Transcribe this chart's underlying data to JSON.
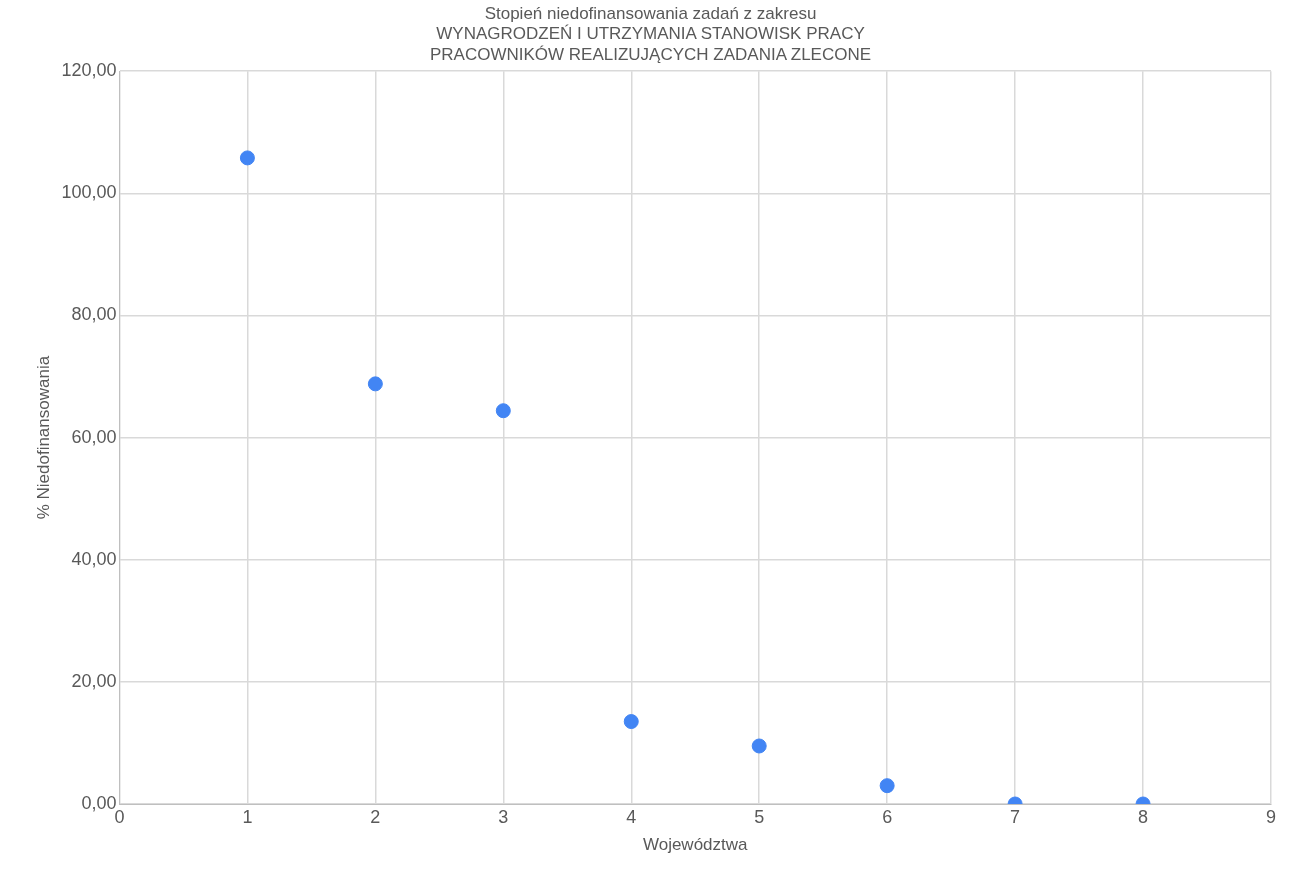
{
  "chart_data": {
    "type": "scatter",
    "title": "Stopień niedofinansowania zadań z zakresu\nWYNAGRODZEŃ I UTRZYMANIA STANOWISK PRACY\nPRACOWNIKÓW REALIZUJĄCYCH ZADANIA ZLECONE",
    "xlabel": "Województwa",
    "ylabel": "% Niedofinansowania",
    "x": [
      1,
      2,
      3,
      4,
      5,
      6,
      7,
      8
    ],
    "series": [
      {
        "color": "#4285f4",
        "values": [
          105.8,
          68.8,
          64.4,
          13.5,
          9.5,
          3.0,
          0,
          0
        ]
      }
    ],
    "xlim": [
      0,
      9
    ],
    "xticks": [
      0,
      1,
      2,
      3,
      4,
      5,
      6,
      7,
      8,
      9
    ],
    "ylim": [
      0,
      120
    ],
    "yticks": [
      {
        "value": 0,
        "label": "0,00"
      },
      {
        "value": 20,
        "label": "20,00"
      },
      {
        "value": 40,
        "label": "40,00"
      },
      {
        "value": 60,
        "label": "60,00"
      },
      {
        "value": 80,
        "label": "80,00"
      },
      {
        "value": 100,
        "label": "100,00"
      },
      {
        "value": 120,
        "label": "120,00"
      }
    ],
    "grid": true,
    "legend": false,
    "marker": "circle"
  }
}
